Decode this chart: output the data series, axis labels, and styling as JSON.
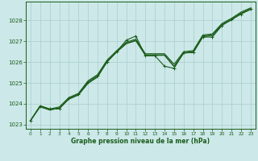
{
  "title": "Graphe pression niveau de la mer (hPa)",
  "background_color": "#cce8e8",
  "grid_color": "#aacece",
  "line_color": "#1a5c1a",
  "xlim": [
    -0.5,
    23.5
  ],
  "ylim": [
    1022.8,
    1028.9
  ],
  "xticks": [
    0,
    1,
    2,
    3,
    4,
    5,
    6,
    7,
    8,
    9,
    10,
    11,
    12,
    13,
    14,
    15,
    16,
    17,
    18,
    19,
    20,
    21,
    22,
    23
  ],
  "yticks": [
    1023,
    1024,
    1025,
    1026,
    1027,
    1028
  ],
  "y_main": [
    1023.2,
    1023.9,
    1023.75,
    1023.75,
    1024.25,
    1024.45,
    1025.05,
    1025.35,
    1026.0,
    1026.5,
    1027.05,
    1027.25,
    1026.3,
    1026.3,
    1025.8,
    1025.7,
    1026.45,
    1026.45,
    1027.2,
    1027.2,
    1027.75,
    1028.05,
    1028.3,
    1028.55
  ],
  "y_trend1": [
    1023.2,
    1023.9,
    1023.72,
    1023.78,
    1024.22,
    1024.42,
    1024.98,
    1025.28,
    1026.02,
    1026.48,
    1026.88,
    1027.02,
    1026.32,
    1026.32,
    1026.32,
    1025.78,
    1026.42,
    1026.48,
    1027.22,
    1027.28,
    1027.78,
    1028.02,
    1028.32,
    1028.52
  ],
  "y_trend2": [
    1023.2,
    1023.85,
    1023.7,
    1023.8,
    1024.25,
    1024.45,
    1025.0,
    1025.3,
    1026.05,
    1026.5,
    1026.9,
    1027.05,
    1026.35,
    1026.35,
    1026.35,
    1025.8,
    1026.45,
    1026.5,
    1027.25,
    1027.3,
    1027.8,
    1028.05,
    1028.35,
    1028.55
  ],
  "y_trend3": [
    1023.2,
    1023.9,
    1023.75,
    1023.85,
    1024.3,
    1024.5,
    1025.1,
    1025.4,
    1026.1,
    1026.55,
    1026.95,
    1027.1,
    1026.4,
    1026.4,
    1026.4,
    1025.9,
    1026.5,
    1026.55,
    1027.3,
    1027.35,
    1027.85,
    1028.1,
    1028.4,
    1028.6
  ]
}
